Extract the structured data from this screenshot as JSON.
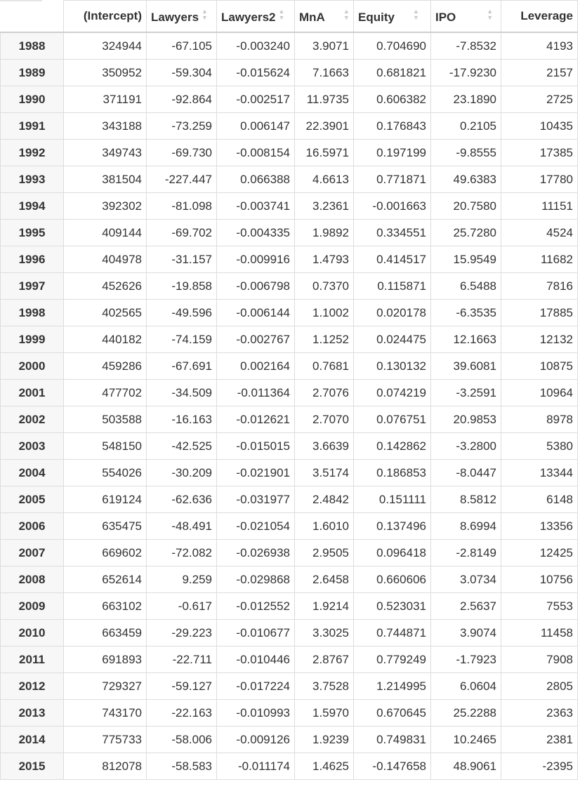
{
  "table": {
    "columns": [
      {
        "label": "(Intercept)",
        "sortable": false
      },
      {
        "label": "Lawyers",
        "sortable": true
      },
      {
        "label": "Lawyers2",
        "sortable": true
      },
      {
        "label": "MnA",
        "sortable": true
      },
      {
        "label": "Equity",
        "sortable": true
      },
      {
        "label": "IPO",
        "sortable": true
      },
      {
        "label": "Leverage",
        "sortable": true
      }
    ],
    "rows": [
      {
        "year": "1988",
        "cells": [
          "324944",
          "-67.105",
          "-0.003240",
          "3.9071",
          "0.704690",
          "-7.8532",
          "4193"
        ]
      },
      {
        "year": "1989",
        "cells": [
          "350952",
          "-59.304",
          "-0.015624",
          "7.1663",
          "0.681821",
          "-17.9230",
          "2157"
        ]
      },
      {
        "year": "1990",
        "cells": [
          "371191",
          "-92.864",
          "-0.002517",
          "11.9735",
          "0.606382",
          "23.1890",
          "2725"
        ]
      },
      {
        "year": "1991",
        "cells": [
          "343188",
          "-73.259",
          "0.006147",
          "22.3901",
          "0.176843",
          "0.2105",
          "10435"
        ]
      },
      {
        "year": "1992",
        "cells": [
          "349743",
          "-69.730",
          "-0.008154",
          "16.5971",
          "0.197199",
          "-9.8555",
          "17385"
        ]
      },
      {
        "year": "1993",
        "cells": [
          "381504",
          "-227.447",
          "0.066388",
          "4.6613",
          "0.771871",
          "49.6383",
          "17780"
        ]
      },
      {
        "year": "1994",
        "cells": [
          "392302",
          "-81.098",
          "-0.003741",
          "3.2361",
          "-0.001663",
          "20.7580",
          "11151"
        ]
      },
      {
        "year": "1995",
        "cells": [
          "409144",
          "-69.702",
          "-0.004335",
          "1.9892",
          "0.334551",
          "25.7280",
          "4524"
        ]
      },
      {
        "year": "1996",
        "cells": [
          "404978",
          "-31.157",
          "-0.009916",
          "1.4793",
          "0.414517",
          "15.9549",
          "11682"
        ]
      },
      {
        "year": "1997",
        "cells": [
          "452626",
          "-19.858",
          "-0.006798",
          "0.7370",
          "0.115871",
          "6.5488",
          "7816"
        ]
      },
      {
        "year": "1998",
        "cells": [
          "402565",
          "-49.596",
          "-0.006144",
          "1.1002",
          "0.020178",
          "-6.3535",
          "17885"
        ]
      },
      {
        "year": "1999",
        "cells": [
          "440182",
          "-74.159",
          "-0.002767",
          "1.1252",
          "0.024475",
          "12.1663",
          "12132"
        ]
      },
      {
        "year": "2000",
        "cells": [
          "459286",
          "-67.691",
          "0.002164",
          "0.7681",
          "0.130132",
          "39.6081",
          "10875"
        ]
      },
      {
        "year": "2001",
        "cells": [
          "477702",
          "-34.509",
          "-0.011364",
          "2.7076",
          "0.074219",
          "-3.2591",
          "10964"
        ]
      },
      {
        "year": "2002",
        "cells": [
          "503588",
          "-16.163",
          "-0.012621",
          "2.7070",
          "0.076751",
          "20.9853",
          "8978"
        ]
      },
      {
        "year": "2003",
        "cells": [
          "548150",
          "-42.525",
          "-0.015015",
          "3.6639",
          "0.142862",
          "-3.2800",
          "5380"
        ]
      },
      {
        "year": "2004",
        "cells": [
          "554026",
          "-30.209",
          "-0.021901",
          "3.5174",
          "0.186853",
          "-8.0447",
          "13344"
        ]
      },
      {
        "year": "2005",
        "cells": [
          "619124",
          "-62.636",
          "-0.031977",
          "2.4842",
          "0.151111",
          "8.5812",
          "6148"
        ]
      },
      {
        "year": "2006",
        "cells": [
          "635475",
          "-48.491",
          "-0.021054",
          "1.6010",
          "0.137496",
          "8.6994",
          "13356"
        ]
      },
      {
        "year": "2007",
        "cells": [
          "669602",
          "-72.082",
          "-0.026938",
          "2.9505",
          "0.096418",
          "-2.8149",
          "12425"
        ]
      },
      {
        "year": "2008",
        "cells": [
          "652614",
          "9.259",
          "-0.029868",
          "2.6458",
          "0.660606",
          "3.0734",
          "10756"
        ]
      },
      {
        "year": "2009",
        "cells": [
          "663102",
          "-0.617",
          "-0.012552",
          "1.9214",
          "0.523031",
          "2.5637",
          "7553"
        ]
      },
      {
        "year": "2010",
        "cells": [
          "663459",
          "-29.223",
          "-0.010677",
          "3.3025",
          "0.744871",
          "3.9074",
          "11458"
        ]
      },
      {
        "year": "2011",
        "cells": [
          "691893",
          "-22.711",
          "-0.010446",
          "2.8767",
          "0.779249",
          "-1.7923",
          "7908"
        ]
      },
      {
        "year": "2012",
        "cells": [
          "729327",
          "-59.127",
          "-0.017224",
          "3.7528",
          "1.214995",
          "6.0604",
          "2805"
        ]
      },
      {
        "year": "2013",
        "cells": [
          "743170",
          "-22.163",
          "-0.010993",
          "1.5970",
          "0.670645",
          "25.2288",
          "2363"
        ]
      },
      {
        "year": "2014",
        "cells": [
          "775733",
          "-58.006",
          "-0.009126",
          "1.9239",
          "0.749831",
          "10.2465",
          "2381"
        ]
      },
      {
        "year": "2015",
        "cells": [
          "812078",
          "-58.583",
          "-0.011174",
          "1.4625",
          "-0.147658",
          "48.9061",
          "-2395"
        ]
      }
    ]
  },
  "colors": {
    "border": "#dddddd",
    "row_header_bg": "#f7f7f7",
    "text": "#333333",
    "sort_icon": "#c9c9c9"
  }
}
